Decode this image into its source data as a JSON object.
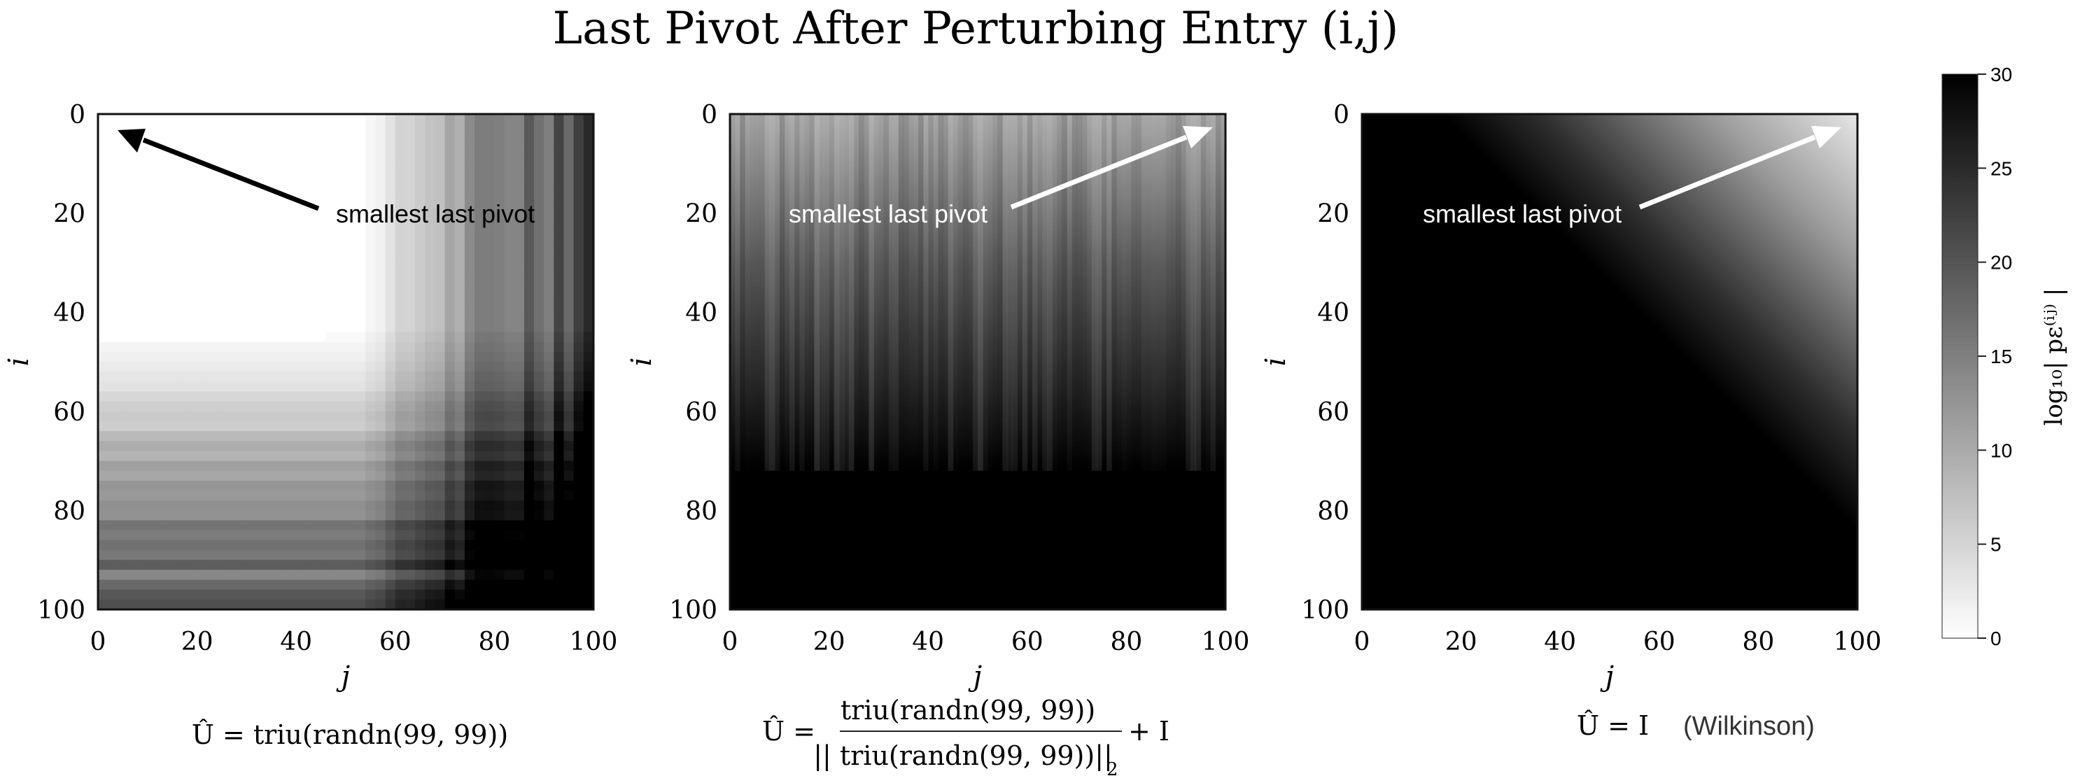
{
  "chart_data": {
    "type": "heatmap",
    "title": "Last Pivot After Perturbing Entry (i,j)",
    "colorbar": {
      "label": "log₁₀| pε⁽ⁱʲ⁾ |",
      "range": [
        0,
        30
      ],
      "ticks": [
        "0",
        "5",
        "10",
        "15",
        "20",
        "25",
        "30"
      ],
      "colormap": "grayscale (0 = white, 30 = black)"
    },
    "panels": [
      {
        "xlabel": "j",
        "ylabel": "i",
        "xticks": [
          "0",
          "20",
          "40",
          "60",
          "80",
          "100"
        ],
        "yticks": [
          "0",
          "20",
          "40",
          "60",
          "80",
          "100"
        ],
        "xlim": [
          0,
          100
        ],
        "ylim": [
          0,
          100
        ],
        "annotation": "smallest last pivot",
        "annotation_target": [
          2,
          3
        ],
        "caption": "Û = triu(randn(99, 99))",
        "description_values": "low values near top-left (i<45, j<60); high values toward bottom-right"
      },
      {
        "xlabel": "j",
        "ylabel": "",
        "xticks": [
          "0",
          "20",
          "40",
          "60",
          "80",
          "100"
        ],
        "yticks": [
          "0",
          "20",
          "40",
          "60",
          "80",
          "100"
        ],
        "xlim": [
          0,
          100
        ],
        "ylim": [
          0,
          100
        ],
        "annotation": "smallest last pivot",
        "annotation_target": [
          97,
          3
        ],
        "caption_lhs": "Û =",
        "caption_num": "triu(randn(99, 99))",
        "caption_den": "|| triu(randn(99, 99))||",
        "caption_sub": "2",
        "caption_rhs": "+ I",
        "description_values": "mid-gray values near row 0; saturating to black below row ~70"
      },
      {
        "xlabel": "j",
        "ylabel": "i",
        "xticks": [
          "0",
          "20",
          "40",
          "60",
          "80",
          "100"
        ],
        "yticks": [
          "0",
          "20",
          "40",
          "60",
          "80",
          "100"
        ],
        "xlim": [
          0,
          100
        ],
        "ylim": [
          0,
          100
        ],
        "annotation": "smallest last pivot",
        "annotation_target": [
          97,
          3
        ],
        "caption_lhs": "Û = I",
        "caption_rhs": "(Wilkinson)",
        "description_values": "black except a light triangle in the top-right corner (j - i large)"
      }
    ]
  }
}
